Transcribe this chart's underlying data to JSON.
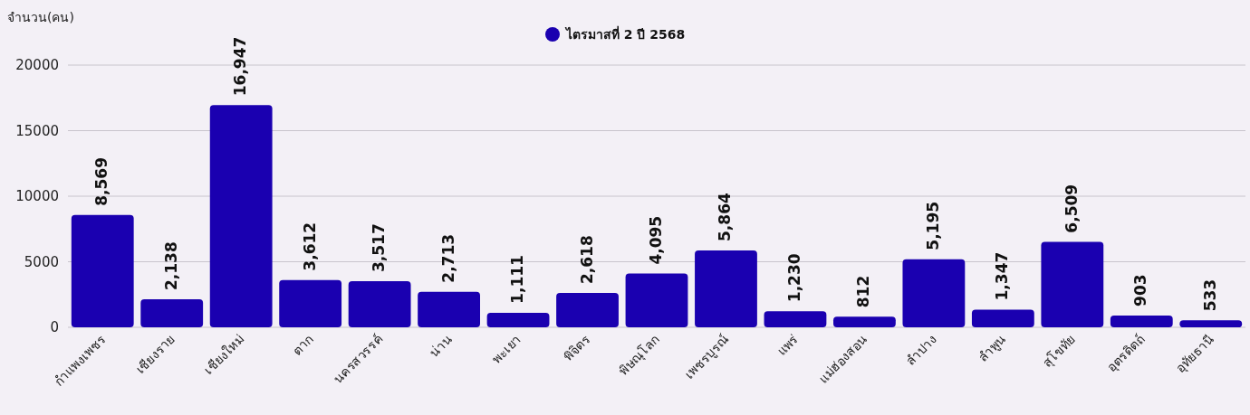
{
  "chart_data": {
    "type": "bar",
    "ylabel": "จำนวน(คน)",
    "categories": [
      "กำแพงเพชร",
      "เชียงราย",
      "เชียงใหม่",
      "ตาก",
      "นครสวรรค์",
      "น่าน",
      "พะเยา",
      "พิจิตร",
      "พิษณุโลก",
      "เพชรบูรณ์",
      "แพร่",
      "แม่ฮ่องสอน",
      "ลำปาง",
      "ลำพูน",
      "สุโขทัย",
      "อุตรดิตถ์",
      "อุทัยธานี"
    ],
    "series": [
      {
        "name": "ไตรมาสที่ 2 ปี 2568",
        "color": "#1a00b0",
        "values": [
          8569,
          2138,
          16947,
          3612,
          3517,
          2713,
          1111,
          2618,
          4095,
          5864,
          1230,
          812,
          5195,
          1347,
          6509,
          903,
          533
        ],
        "value_labels": [
          "8,569",
          "2,138",
          "16,947",
          "3,612",
          "3,517",
          "2,713",
          "1,111",
          "2,618",
          "4,095",
          "5,864",
          "1,230",
          "812",
          "5,195",
          "1,347",
          "6,509",
          "903",
          "533"
        ]
      }
    ],
    "ylim": [
      0,
      20000
    ],
    "yticks": [
      0,
      5000,
      10000,
      15000,
      20000
    ],
    "grid": "y",
    "legend": "top"
  }
}
